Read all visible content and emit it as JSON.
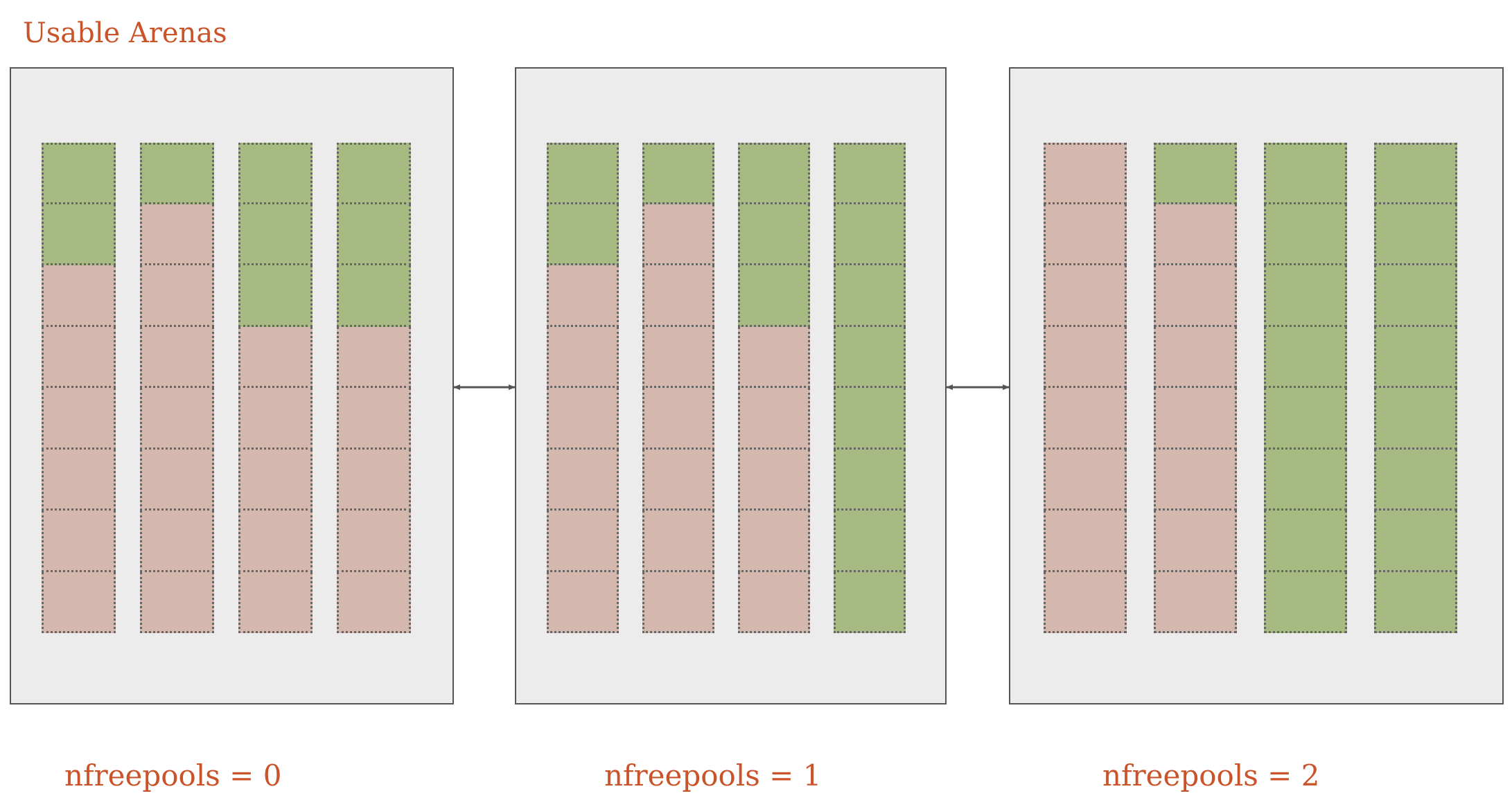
{
  "title": "Usable Arenas",
  "colors": {
    "title": "#c9542a",
    "free_block": "#a6ba82",
    "used_block": "#d4b8ad",
    "arena_fill": "#ececec",
    "arena_border": "#555555",
    "arrow": "#555555"
  },
  "arenas": [
    {
      "caption": "nfreepools = 0",
      "pools": [
        {
          "free_blocks": 2,
          "total_blocks": 8
        },
        {
          "free_blocks": 1,
          "total_blocks": 8
        },
        {
          "free_blocks": 3,
          "total_blocks": 8
        },
        {
          "free_blocks": 3,
          "total_blocks": 8
        }
      ]
    },
    {
      "caption": "nfreepools = 1",
      "pools": [
        {
          "free_blocks": 2,
          "total_blocks": 8
        },
        {
          "free_blocks": 1,
          "total_blocks": 8
        },
        {
          "free_blocks": 3,
          "total_blocks": 8
        },
        {
          "free_blocks": 8,
          "total_blocks": 8
        }
      ]
    },
    {
      "caption": "nfreepools = 2",
      "pools": [
        {
          "free_blocks": 0,
          "total_blocks": 8
        },
        {
          "free_blocks": 1,
          "total_blocks": 8
        },
        {
          "free_blocks": 8,
          "total_blocks": 8
        },
        {
          "free_blocks": 8,
          "total_blocks": 8
        }
      ]
    }
  ],
  "links": [
    {
      "from": 0,
      "to": 1,
      "style": "double-arrow"
    },
    {
      "from": 1,
      "to": 2,
      "style": "double-arrow"
    }
  ]
}
